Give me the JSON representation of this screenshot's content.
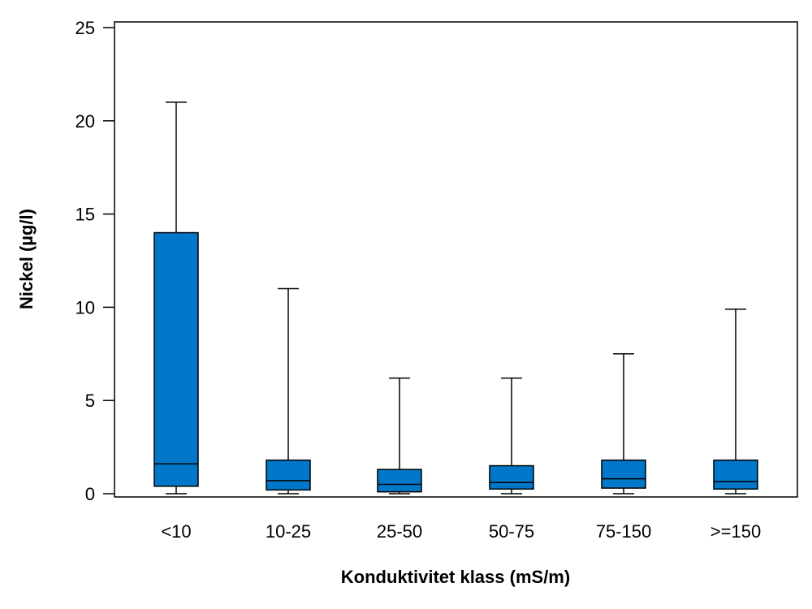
{
  "chart_data": {
    "type": "boxplot",
    "xlabel": "Konduktivitet klass (mS/m)",
    "ylabel": "Nickel (µg/l)",
    "ylim": [
      0,
      25
    ],
    "yticks": [
      0,
      5,
      10,
      15,
      20,
      25
    ],
    "grid": false,
    "legend": "none",
    "box_color": "#0077C8",
    "categories": [
      "<10",
      "10-25",
      "25-50",
      "50-75",
      "75-150",
      ">=150"
    ],
    "series": [
      {
        "min": 0,
        "q1": 0.4,
        "median": 1.6,
        "q3": 14.0,
        "max": 21.0
      },
      {
        "min": 0,
        "q1": 0.2,
        "median": 0.7,
        "q3": 1.8,
        "max": 11.0
      },
      {
        "min": 0,
        "q1": 0.1,
        "median": 0.5,
        "q3": 1.3,
        "max": 6.2
      },
      {
        "min": 0,
        "q1": 0.25,
        "median": 0.6,
        "q3": 1.5,
        "max": 6.2
      },
      {
        "min": 0,
        "q1": 0.3,
        "median": 0.8,
        "q3": 1.8,
        "max": 7.5
      },
      {
        "min": 0,
        "q1": 0.25,
        "median": 0.65,
        "q3": 1.8,
        "max": 9.9
      }
    ]
  }
}
